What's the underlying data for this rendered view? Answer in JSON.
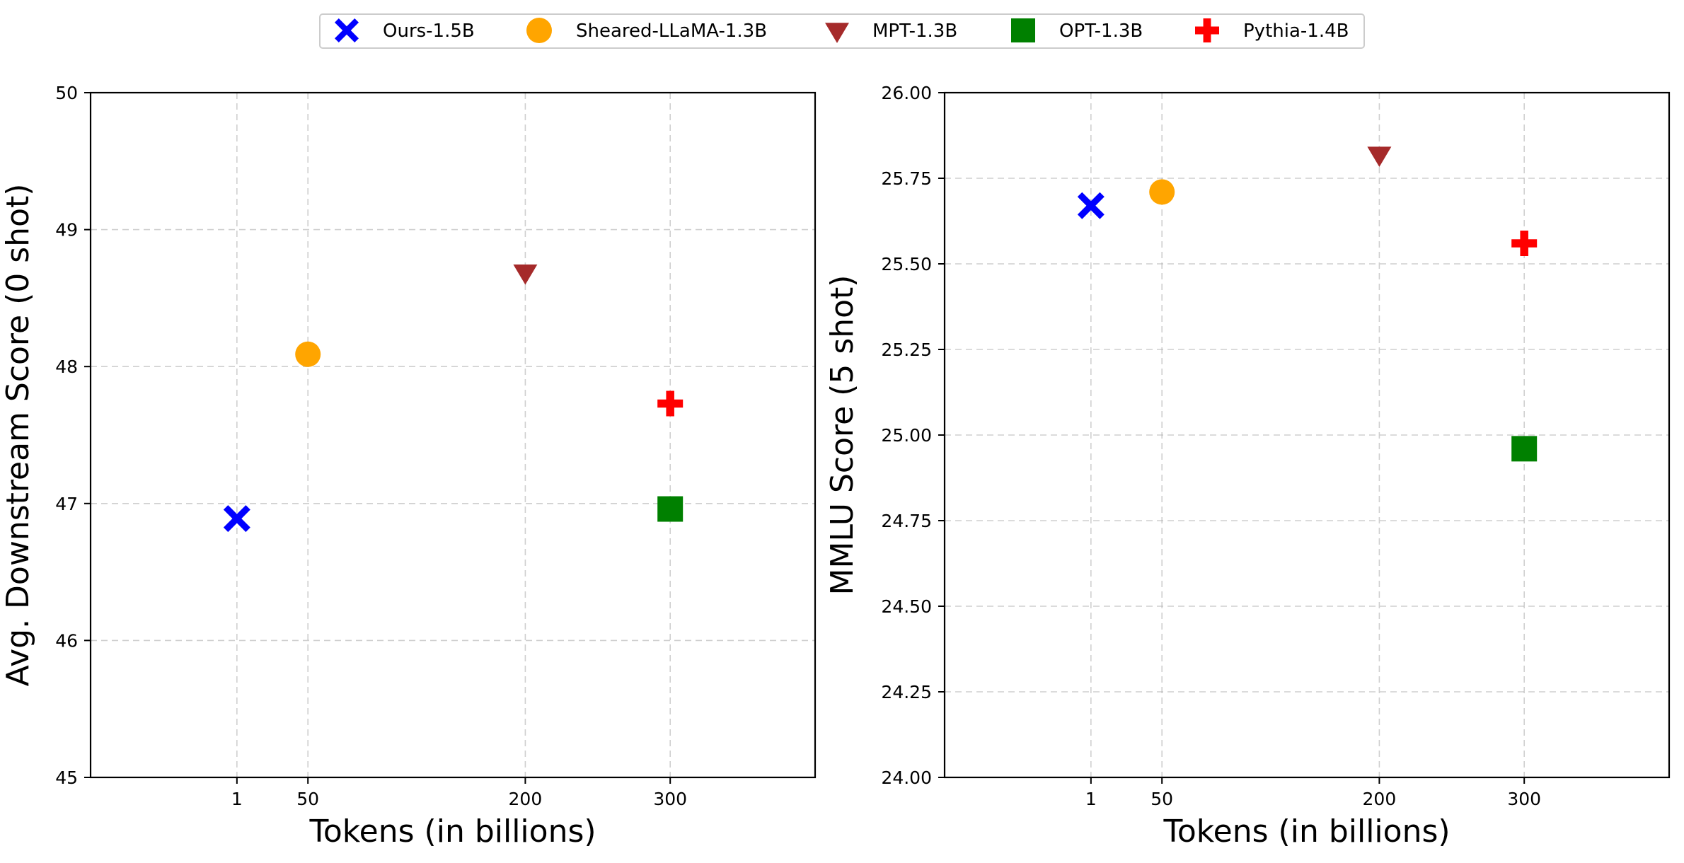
{
  "legend": {
    "placement": "top-center",
    "entries": [
      {
        "label": "Ours-1.5B",
        "color": "#0000ff",
        "marker": "x-filled"
      },
      {
        "label": "Sheared-LLaMA-1.3B",
        "color": "#ffa500",
        "marker": "circle"
      },
      {
        "label": "MPT-1.3B",
        "color": "#a52a2a",
        "marker": "triangle-down"
      },
      {
        "label": "OPT-1.3B",
        "color": "#008000",
        "marker": "square"
      },
      {
        "label": "Pythia-1.4B",
        "color": "#ff0000",
        "marker": "plus-filled"
      }
    ]
  },
  "chart_data": [
    {
      "type": "scatter",
      "title": "",
      "xlabel": "Tokens (in billions)",
      "ylabel": "Avg. Downstream Score (0 shot)",
      "xlim": [
        -100,
        400
      ],
      "ylim": [
        45,
        50
      ],
      "xticks": [
        1,
        50,
        200,
        300
      ],
      "xtick_labels": [
        "1",
        "50",
        "200",
        "300"
      ],
      "yticks": [
        45,
        46,
        47,
        48,
        49,
        50
      ],
      "ytick_labels": [
        "45",
        "46",
        "47",
        "48",
        "49",
        "50"
      ],
      "grid": true,
      "series": [
        {
          "name": "Ours-1.5B",
          "x": 1,
          "y": 46.89
        },
        {
          "name": "Sheared-LLaMA-1.3B",
          "x": 50,
          "y": 48.09
        },
        {
          "name": "MPT-1.3B",
          "x": 200,
          "y": 48.69
        },
        {
          "name": "OPT-1.3B",
          "x": 300,
          "y": 46.96
        },
        {
          "name": "Pythia-1.4B",
          "x": 300,
          "y": 47.73
        }
      ]
    },
    {
      "type": "scatter",
      "title": "",
      "xlabel": "Tokens (in billions)",
      "ylabel": "MMLU Score (5 shot)",
      "xlim": [
        -100,
        400
      ],
      "ylim": [
        24.0,
        26.0
      ],
      "xticks": [
        1,
        50,
        200,
        300
      ],
      "xtick_labels": [
        "1",
        "50",
        "200",
        "300"
      ],
      "yticks": [
        24.0,
        24.25,
        24.5,
        24.75,
        25.0,
        25.25,
        25.5,
        25.75,
        26.0
      ],
      "ytick_labels": [
        "24.00",
        "24.25",
        "24.50",
        "24.75",
        "25.00",
        "25.25",
        "25.50",
        "25.75",
        "26.00"
      ],
      "grid": true,
      "series": [
        {
          "name": "Ours-1.5B",
          "x": 1,
          "y": 25.67
        },
        {
          "name": "Sheared-LLaMA-1.3B",
          "x": 50,
          "y": 25.71
        },
        {
          "name": "MPT-1.3B",
          "x": 200,
          "y": 25.82
        },
        {
          "name": "OPT-1.3B",
          "x": 300,
          "y": 24.96
        },
        {
          "name": "Pythia-1.4B",
          "x": 300,
          "y": 25.56
        }
      ]
    }
  ]
}
